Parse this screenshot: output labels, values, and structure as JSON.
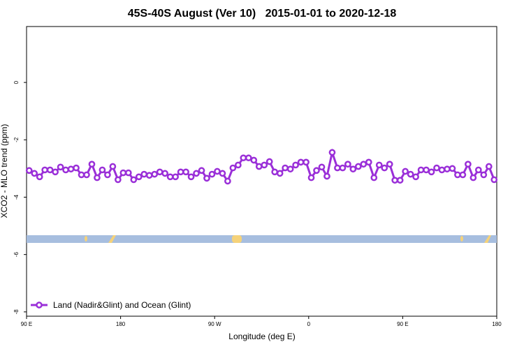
{
  "chart_data": {
    "type": "line",
    "title": "45S-40S August (Ver 10)   2015-01-01 to 2020-12-18",
    "x_label": "Longitude (deg E)",
    "y_label": "XCO2 - MLO trend (ppm)",
    "xlim": [
      90,
      540
    ],
    "xticks": [
      {
        "value": 90,
        "label": "90 E"
      },
      {
        "value": 180,
        "label": "180"
      },
      {
        "value": 270,
        "label": "90 W"
      },
      {
        "value": 360,
        "label": "0"
      },
      {
        "value": 450,
        "label": "90 E"
      },
      {
        "value": 540,
        "label": "180"
      }
    ],
    "ylim": [
      -8.15,
      1.95
    ],
    "yticks": [
      -8,
      -6,
      -4,
      -2,
      0
    ],
    "legend": "bottom-left",
    "x": [
      92.5,
      97.5,
      102.5,
      107.5,
      112.5,
      117.5,
      122.5,
      127.5,
      132.5,
      137.5,
      142.5,
      147.5,
      152.5,
      157.5,
      162.5,
      167.5,
      172.5,
      177.5,
      182.5,
      187.5,
      192.5,
      197.5,
      202.5,
      207.5,
      212.5,
      217.5,
      222.5,
      227.5,
      232.5,
      237.5,
      242.5,
      247.5,
      252.5,
      257.5,
      262.5,
      267.5,
      272.5,
      277.5,
      282.5,
      287.5,
      292.5,
      297.5,
      302.5,
      307.5,
      312.5,
      317.5,
      322.5,
      327.5,
      332.5,
      337.5,
      342.5,
      347.5,
      352.5,
      357.5,
      362.5,
      367.5,
      372.5,
      377.5,
      382.5,
      387.5,
      392.5,
      397.5,
      402.5,
      407.5,
      412.5,
      417.5,
      422.5,
      427.5,
      432.5,
      437.5,
      442.5,
      447.5,
      452.5,
      457.5,
      462.5,
      467.5,
      472.5,
      477.5,
      482.5,
      487.5,
      492.5,
      497.5,
      502.5,
      507.5,
      512.5,
      517.5,
      522.5,
      527.5,
      532.5,
      537.5
    ],
    "series": [
      {
        "name": "Land (Nadir&Glint) and Ocean (Glint)",
        "color": "#9a2fd8",
        "values": [
          -3.07,
          -3.17,
          -3.29,
          -3.05,
          -3.05,
          -3.12,
          -2.95,
          -3.05,
          -3.02,
          -2.98,
          -3.22,
          -3.22,
          -2.85,
          -3.32,
          -3.05,
          -3.22,
          -2.93,
          -3.39,
          -3.15,
          -3.15,
          -3.39,
          -3.29,
          -3.2,
          -3.24,
          -3.2,
          -3.12,
          -3.17,
          -3.29,
          -3.29,
          -3.12,
          -3.12,
          -3.29,
          -3.17,
          -3.07,
          -3.34,
          -3.2,
          -3.1,
          -3.17,
          -3.44,
          -2.98,
          -2.88,
          -2.63,
          -2.63,
          -2.71,
          -2.93,
          -2.88,
          -2.76,
          -3.12,
          -3.17,
          -2.98,
          -3.02,
          -2.88,
          -2.78,
          -2.78,
          -3.32,
          -3.07,
          -2.95,
          -3.27,
          -2.44,
          -2.98,
          -2.98,
          -2.85,
          -3.02,
          -2.93,
          -2.85,
          -2.78,
          -3.32,
          -2.88,
          -2.98,
          -2.85,
          -3.41,
          -3.41,
          -3.1,
          -3.2,
          -3.29,
          -3.05,
          -3.05,
          -3.12,
          -2.98,
          -3.05,
          -3.02,
          -3.0,
          -3.22,
          -3.22,
          -2.85,
          -3.32,
          -3.05,
          -3.22,
          -2.93,
          -3.39
        ]
      }
    ]
  }
}
